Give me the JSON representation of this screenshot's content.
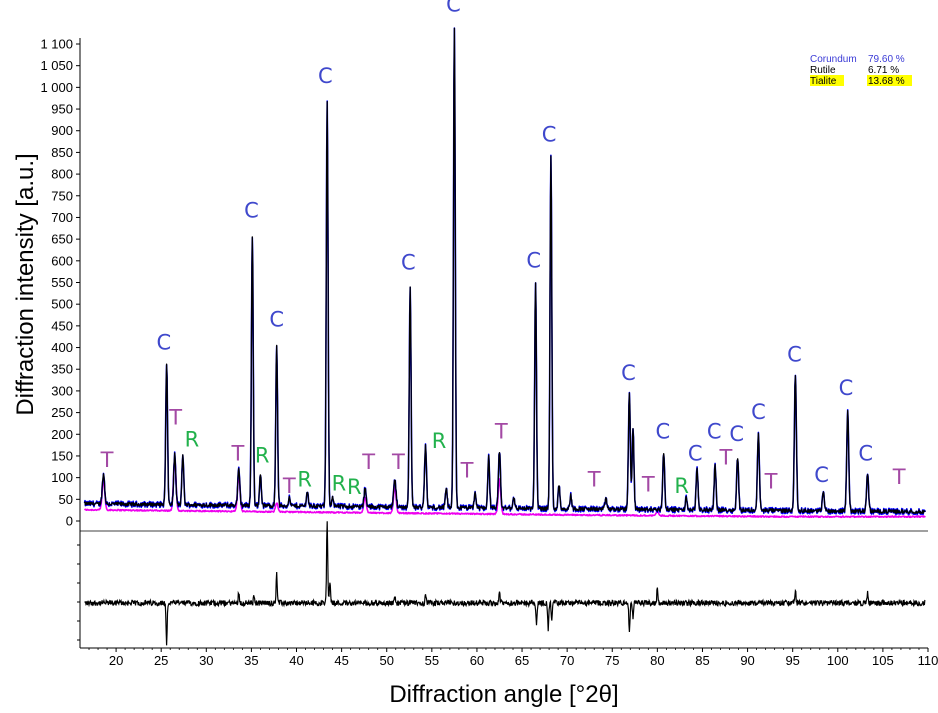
{
  "chart_data": {
    "type": "line",
    "xlabel": "Diffraction angle [°2θ]",
    "ylabel": "Diffraction intensity [a.u.]",
    "xlim": [
      16,
      110
    ],
    "ylim": [
      0,
      1130
    ],
    "x_ticks": [
      20,
      25,
      30,
      35,
      40,
      45,
      50,
      55,
      60,
      65,
      70,
      75,
      80,
      85,
      90,
      95,
      100,
      105,
      110
    ],
    "y_ticks": [
      "0",
      "50",
      "100",
      "150",
      "200",
      "250",
      "300",
      "350",
      "400",
      "450",
      "500",
      "550",
      "600",
      "650",
      "700",
      "750",
      "800",
      "850",
      "900",
      "950",
      "1 000",
      "1 050",
      "1 100"
    ],
    "y_tick_values": [
      0,
      50,
      100,
      150,
      200,
      250,
      300,
      350,
      400,
      450,
      500,
      550,
      600,
      650,
      700,
      750,
      800,
      850,
      900,
      950,
      1000,
      1050,
      1100
    ],
    "legend": [
      {
        "name": "Corundum",
        "value": "79.60 %",
        "color": "#3a3ad6",
        "highlight": false
      },
      {
        "name": "Rutile",
        "value": "6.71 %",
        "color": "#000000",
        "highlight": false
      },
      {
        "name": "Tialite",
        "value": "13.68 %",
        "color": "#000000",
        "highlight": true
      }
    ],
    "colors": {
      "observed": "#0000ff",
      "calculated": "#000000",
      "tialite": "#ee00ee",
      "difference": "#000000",
      "label_C": "#3f48cc",
      "label_R": "#22b14c",
      "label_T": "#a349a4",
      "highlight": "#ffff00"
    },
    "peaks": [
      {
        "x": 18.6,
        "y": 88,
        "w": 0.18
      },
      {
        "x": 25.6,
        "y": 345,
        "w": 0.14
      },
      {
        "x": 26.5,
        "y": 135,
        "w": 0.16
      },
      {
        "x": 27.4,
        "y": 135,
        "w": 0.14
      },
      {
        "x": 33.6,
        "y": 100,
        "w": 0.16
      },
      {
        "x": 35.1,
        "y": 640,
        "w": 0.14
      },
      {
        "x": 36.0,
        "y": 90,
        "w": 0.14
      },
      {
        "x": 37.8,
        "y": 390,
        "w": 0.14
      },
      {
        "x": 39.2,
        "y": 35,
        "w": 0.15
      },
      {
        "x": 41.2,
        "y": 50,
        "w": 0.15
      },
      {
        "x": 43.4,
        "y": 948,
        "w": 0.14
      },
      {
        "x": 44.0,
        "y": 40,
        "w": 0.14
      },
      {
        "x": 47.6,
        "y": 60,
        "w": 0.15
      },
      {
        "x": 50.9,
        "y": 80,
        "w": 0.18
      },
      {
        "x": 52.6,
        "y": 525,
        "w": 0.14
      },
      {
        "x": 54.3,
        "y": 158,
        "w": 0.15
      },
      {
        "x": 56.6,
        "y": 60,
        "w": 0.14
      },
      {
        "x": 57.5,
        "y": 1120,
        "w": 0.14
      },
      {
        "x": 59.8,
        "y": 50,
        "w": 0.14
      },
      {
        "x": 61.3,
        "y": 133,
        "w": 0.14
      },
      {
        "x": 62.5,
        "y": 145,
        "w": 0.16
      },
      {
        "x": 64.1,
        "y": 40,
        "w": 0.14
      },
      {
        "x": 66.5,
        "y": 535,
        "w": 0.14
      },
      {
        "x": 68.2,
        "y": 825,
        "w": 0.14
      },
      {
        "x": 69.1,
        "y": 70,
        "w": 0.14
      },
      {
        "x": 70.4,
        "y": 45,
        "w": 0.14
      },
      {
        "x": 74.3,
        "y": 40,
        "w": 0.14
      },
      {
        "x": 76.9,
        "y": 280,
        "w": 0.15
      },
      {
        "x": 77.3,
        "y": 200,
        "w": 0.14
      },
      {
        "x": 80.7,
        "y": 145,
        "w": 0.15
      },
      {
        "x": 83.2,
        "y": 40,
        "w": 0.14
      },
      {
        "x": 84.4,
        "y": 105,
        "w": 0.15
      },
      {
        "x": 86.4,
        "y": 115,
        "w": 0.15
      },
      {
        "x": 88.9,
        "y": 135,
        "w": 0.15
      },
      {
        "x": 91.2,
        "y": 188,
        "w": 0.15
      },
      {
        "x": 95.3,
        "y": 322,
        "w": 0.16
      },
      {
        "x": 98.4,
        "y": 55,
        "w": 0.16
      },
      {
        "x": 101.1,
        "y": 240,
        "w": 0.16
      },
      {
        "x": 103.3,
        "y": 95,
        "w": 0.16
      }
    ],
    "tialite_peaks": [
      {
        "x": 18.6,
        "y": 85
      },
      {
        "x": 26.5,
        "y": 133
      },
      {
        "x": 33.6,
        "y": 98
      },
      {
        "x": 37.8,
        "y": 35
      },
      {
        "x": 47.6,
        "y": 50
      },
      {
        "x": 50.9,
        "y": 75
      },
      {
        "x": 62.5,
        "y": 95
      },
      {
        "x": 80.0,
        "y": 25
      }
    ],
    "difference_spikes": [
      {
        "x": 25.6,
        "v": -75
      },
      {
        "x": 33.6,
        "v": 20
      },
      {
        "x": 35.3,
        "v": 15
      },
      {
        "x": 37.8,
        "v": 55
      },
      {
        "x": 43.4,
        "v": 150
      },
      {
        "x": 43.7,
        "v": 40
      },
      {
        "x": 50.9,
        "v": 12
      },
      {
        "x": 54.3,
        "v": 15
      },
      {
        "x": 62.5,
        "v": 20
      },
      {
        "x": 66.6,
        "v": -40
      },
      {
        "x": 67.9,
        "v": -48
      },
      {
        "x": 68.3,
        "v": -30
      },
      {
        "x": 76.9,
        "v": -55
      },
      {
        "x": 77.3,
        "v": -25
      },
      {
        "x": 80.0,
        "v": 28
      },
      {
        "x": 95.3,
        "v": 22
      },
      {
        "x": 103.3,
        "v": 18
      }
    ],
    "annotations": [
      {
        "text": "C",
        "x": 57.4,
        "y": 1175,
        "type": "C"
      },
      {
        "text": "C",
        "x": 43.2,
        "y": 1010,
        "type": "C"
      },
      {
        "text": "C",
        "x": 68.0,
        "y": 875,
        "type": "C"
      },
      {
        "text": "C",
        "x": 35.0,
        "y": 700,
        "type": "C"
      },
      {
        "text": "C",
        "x": 52.4,
        "y": 580,
        "type": "C"
      },
      {
        "text": "C",
        "x": 66.3,
        "y": 585,
        "type": "C"
      },
      {
        "text": "C",
        "x": 37.8,
        "y": 448,
        "type": "C"
      },
      {
        "text": "C",
        "x": 25.3,
        "y": 395,
        "type": "C"
      },
      {
        "text": "C",
        "x": 76.8,
        "y": 325,
        "type": "C"
      },
      {
        "text": "C",
        "x": 95.2,
        "y": 368,
        "type": "C"
      },
      {
        "text": "C",
        "x": 100.9,
        "y": 290,
        "type": "C"
      },
      {
        "text": "C",
        "x": 80.6,
        "y": 190,
        "type": "C"
      },
      {
        "text": "C",
        "x": 86.3,
        "y": 190,
        "type": "C"
      },
      {
        "text": "C",
        "x": 88.8,
        "y": 185,
        "type": "C"
      },
      {
        "text": "C",
        "x": 91.2,
        "y": 235,
        "type": "C"
      },
      {
        "text": "C",
        "x": 84.2,
        "y": 140,
        "type": "C"
      },
      {
        "text": "C",
        "x": 98.2,
        "y": 90,
        "type": "C"
      },
      {
        "text": "C",
        "x": 103.1,
        "y": 140,
        "type": "C"
      },
      {
        "text": "T",
        "x": 26.6,
        "y": 222,
        "type": "T"
      },
      {
        "text": "R",
        "x": 28.4,
        "y": 172,
        "type": "R"
      },
      {
        "text": "T",
        "x": 19.0,
        "y": 125,
        "type": "T"
      },
      {
        "text": "T",
        "x": 33.5,
        "y": 140,
        "type": "T"
      },
      {
        "text": "R",
        "x": 36.2,
        "y": 135,
        "type": "R"
      },
      {
        "text": "T",
        "x": 39.2,
        "y": 65,
        "type": "T"
      },
      {
        "text": "R",
        "x": 40.9,
        "y": 80,
        "type": "R"
      },
      {
        "text": "R",
        "x": 44.7,
        "y": 70,
        "type": "R"
      },
      {
        "text": "R",
        "x": 46.4,
        "y": 62,
        "type": "R"
      },
      {
        "text": "T",
        "x": 48.0,
        "y": 120,
        "type": "T"
      },
      {
        "text": "T",
        "x": 51.3,
        "y": 120,
        "type": "T"
      },
      {
        "text": "R",
        "x": 55.8,
        "y": 168,
        "type": "R"
      },
      {
        "text": "T",
        "x": 58.9,
        "y": 100,
        "type": "T"
      },
      {
        "text": "T",
        "x": 62.7,
        "y": 190,
        "type": "T"
      },
      {
        "text": "T",
        "x": 73.0,
        "y": 80,
        "type": "T"
      },
      {
        "text": "T",
        "x": 79.0,
        "y": 68,
        "type": "T"
      },
      {
        "text": "R",
        "x": 82.7,
        "y": 65,
        "type": "R"
      },
      {
        "text": "T",
        "x": 87.6,
        "y": 130,
        "type": "T"
      },
      {
        "text": "T",
        "x": 92.6,
        "y": 75,
        "type": "T"
      },
      {
        "text": "T",
        "x": 106.8,
        "y": 85,
        "type": "T"
      }
    ]
  }
}
